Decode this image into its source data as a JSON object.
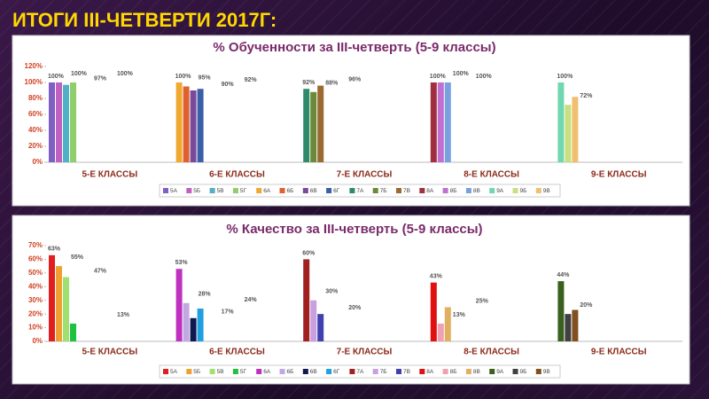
{
  "slide_title": "ИТОГИ III-ЧЕТВЕРТИ 2017Г:",
  "chart_data": [
    {
      "type": "bar",
      "title": "% Обученности за III-четверть (5-9 классы)",
      "categories": [
        "5-Е КЛАССЫ",
        "6-Е КЛАССЫ",
        "7-Е КЛАССЫ",
        "8-Е КЛАССЫ",
        "9-Е КЛАССЫ"
      ],
      "ylim": [
        0,
        120
      ],
      "yticks": [
        {
          "value": 0,
          "label": "0%"
        },
        {
          "value": 20,
          "label": "20%"
        },
        {
          "value": 40,
          "label": "40%"
        },
        {
          "value": 60,
          "label": "60%"
        },
        {
          "value": 80,
          "label": "80%"
        },
        {
          "value": 100,
          "label": "100%"
        },
        {
          "value": 120,
          "label": "120%"
        }
      ],
      "series": [
        {
          "name": "5А",
          "color": "#7f5fc5",
          "values": [
            100,
            null,
            null,
            null,
            null
          ],
          "value_labels": [
            "100%",
            null,
            null,
            null,
            null
          ]
        },
        {
          "name": "5Б",
          "color": "#c060c0",
          "values": [
            100,
            null,
            null,
            null,
            null
          ],
          "value_labels": [
            "100%",
            null,
            null,
            null,
            null
          ]
        },
        {
          "name": "5В",
          "color": "#4fb0c6",
          "values": [
            97,
            null,
            null,
            null,
            null
          ],
          "value_labels": [
            "97%",
            null,
            null,
            null,
            null
          ]
        },
        {
          "name": "5Г",
          "color": "#8fce6a",
          "values": [
            100,
            null,
            null,
            null,
            null
          ],
          "value_labels": [
            "100%",
            null,
            null,
            null,
            null
          ]
        },
        {
          "name": "6А",
          "color": "#f0a830",
          "values": [
            null,
            100,
            null,
            null,
            null
          ],
          "value_labels": [
            null,
            "100%",
            null,
            null,
            null
          ]
        },
        {
          "name": "6Б",
          "color": "#e06030",
          "values": [
            null,
            95,
            null,
            null,
            null
          ],
          "value_labels": [
            null,
            "95%",
            null,
            null,
            null
          ]
        },
        {
          "name": "6В",
          "color": "#7a4a9a",
          "values": [
            null,
            90,
            null,
            null,
            null
          ],
          "value_labels": [
            null,
            "90%",
            null,
            null,
            null
          ]
        },
        {
          "name": "6Г",
          "color": "#3a5fa8",
          "values": [
            null,
            92,
            null,
            null,
            null
          ],
          "value_labels": [
            null,
            "92%",
            null,
            null,
            null
          ]
        },
        {
          "name": "7А",
          "color": "#2e8b6a",
          "values": [
            null,
            null,
            92,
            null,
            null
          ],
          "value_labels": [
            null,
            null,
            "92%",
            null,
            null
          ]
        },
        {
          "name": "7Б",
          "color": "#6a8a3a",
          "values": [
            null,
            null,
            88,
            null,
            null
          ],
          "value_labels": [
            null,
            null,
            "88%",
            null,
            null
          ]
        },
        {
          "name": "7В",
          "color": "#9a6a30",
          "values": [
            null,
            null,
            96,
            null,
            null
          ],
          "value_labels": [
            null,
            null,
            "96%",
            null,
            null
          ]
        },
        {
          "name": "8А",
          "color": "#a03040",
          "values": [
            null,
            null,
            null,
            100,
            null
          ],
          "value_labels": [
            null,
            null,
            null,
            "100%",
            null
          ]
        },
        {
          "name": "8Б",
          "color": "#c070d0",
          "values": [
            null,
            null,
            null,
            100,
            null
          ],
          "value_labels": [
            null,
            null,
            null,
            "100%",
            null
          ]
        },
        {
          "name": "8В",
          "color": "#7aa0e0",
          "values": [
            null,
            null,
            null,
            100,
            null
          ],
          "value_labels": [
            null,
            null,
            null,
            "100%",
            null
          ]
        },
        {
          "name": "9А",
          "color": "#70d8b0",
          "values": [
            null,
            null,
            null,
            null,
            100
          ],
          "value_labels": [
            null,
            null,
            null,
            null,
            "100%"
          ]
        },
        {
          "name": "9Б",
          "color": "#c8e080",
          "values": [
            null,
            null,
            null,
            null,
            72
          ],
          "value_labels": [
            null,
            null,
            null,
            null,
            "72%"
          ]
        },
        {
          "name": "9В",
          "color": "#f0c070",
          "values": [
            null,
            null,
            null,
            null,
            82
          ],
          "value_labels": [
            null,
            null,
            null,
            null,
            null
          ]
        }
      ]
    },
    {
      "type": "bar",
      "title": "% Качество за III-четверть (5-9 классы)",
      "categories": [
        "5-Е КЛАССЫ",
        "6-Е КЛАССЫ",
        "7-Е КЛАССЫ",
        "8-Е КЛАССЫ",
        "9-Е КЛАССЫ"
      ],
      "ylim": [
        0,
        70
      ],
      "yticks": [
        {
          "value": 0,
          "label": "0%"
        },
        {
          "value": 10,
          "label": "10%"
        },
        {
          "value": 20,
          "label": "20%"
        },
        {
          "value": 30,
          "label": "30%"
        },
        {
          "value": 40,
          "label": "40%"
        },
        {
          "value": 50,
          "label": "50%"
        },
        {
          "value": 60,
          "label": "60%"
        },
        {
          "value": 70,
          "label": "70%"
        }
      ],
      "series": [
        {
          "name": "5А",
          "color": "#e02020",
          "values": [
            63,
            null,
            null,
            null,
            null
          ],
          "value_labels": [
            "63%",
            null,
            null,
            null,
            null
          ]
        },
        {
          "name": "5Б",
          "color": "#f0a030",
          "values": [
            55,
            null,
            null,
            null,
            null
          ],
          "value_labels": [
            "55%",
            null,
            null,
            null,
            null
          ]
        },
        {
          "name": "5В",
          "color": "#a0e070",
          "values": [
            47,
            null,
            null,
            null,
            null
          ],
          "value_labels": [
            "47%",
            null,
            null,
            null,
            null
          ]
        },
        {
          "name": "5Г",
          "color": "#20c040",
          "values": [
            13,
            null,
            null,
            null,
            null
          ],
          "value_labels": [
            "13%",
            null,
            null,
            null,
            null
          ]
        },
        {
          "name": "6А",
          "color": "#c030c0",
          "values": [
            null,
            53,
            null,
            null,
            null
          ],
          "value_labels": [
            null,
            "53%",
            null,
            null,
            null
          ]
        },
        {
          "name": "6Б",
          "color": "#c0a8e0",
          "values": [
            null,
            28,
            null,
            null,
            null
          ],
          "value_labels": [
            null,
            "28%",
            null,
            null,
            null
          ]
        },
        {
          "name": "6В",
          "color": "#101850",
          "values": [
            null,
            17,
            null,
            null,
            null
          ],
          "value_labels": [
            null,
            "17%",
            null,
            null,
            null
          ]
        },
        {
          "name": "6Г",
          "color": "#20a0e0",
          "values": [
            null,
            24,
            null,
            null,
            null
          ],
          "value_labels": [
            null,
            "24%",
            null,
            null,
            null
          ]
        },
        {
          "name": "7А",
          "color": "#a02020",
          "values": [
            null,
            null,
            60,
            null,
            null
          ],
          "value_labels": [
            null,
            null,
            "60%",
            null,
            null
          ]
        },
        {
          "name": "7Б",
          "color": "#c8a0e0",
          "values": [
            null,
            null,
            30,
            null,
            null
          ],
          "value_labels": [
            null,
            null,
            "30%",
            null,
            null
          ]
        },
        {
          "name": "7В",
          "color": "#4040b0",
          "values": [
            null,
            null,
            20,
            null,
            null
          ],
          "value_labels": [
            null,
            null,
            "20%",
            null,
            null
          ]
        },
        {
          "name": "8А",
          "color": "#e01010",
          "values": [
            null,
            null,
            null,
            43,
            null
          ],
          "value_labels": [
            null,
            null,
            null,
            "43%",
            null
          ]
        },
        {
          "name": "8Б",
          "color": "#f0a0b0",
          "values": [
            null,
            null,
            null,
            13,
            null
          ],
          "value_labels": [
            null,
            null,
            null,
            "13%",
            null
          ]
        },
        {
          "name": "8В",
          "color": "#e0b060",
          "values": [
            null,
            null,
            null,
            25,
            null
          ],
          "value_labels": [
            null,
            null,
            null,
            "25%",
            null
          ]
        },
        {
          "name": "9А",
          "color": "#3a6020",
          "values": [
            null,
            null,
            null,
            null,
            44
          ],
          "value_labels": [
            null,
            null,
            null,
            null,
            "44%"
          ]
        },
        {
          "name": "9Б",
          "color": "#404040",
          "values": [
            null,
            null,
            null,
            null,
            20
          ],
          "value_labels": [
            null,
            null,
            null,
            null,
            "20%"
          ]
        },
        {
          "name": "9В",
          "color": "#805020",
          "values": [
            null,
            null,
            null,
            null,
            23
          ],
          "value_labels": [
            null,
            null,
            null,
            null,
            null
          ]
        }
      ]
    }
  ]
}
